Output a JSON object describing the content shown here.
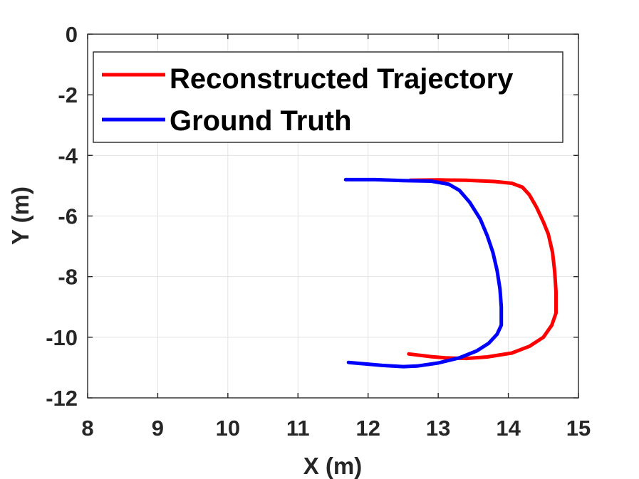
{
  "chart_data": {
    "type": "line",
    "xlabel": "X (m)",
    "ylabel": "Y (m)",
    "xlim": [
      8,
      15
    ],
    "ylim": [
      -12,
      0
    ],
    "xticks": [
      8,
      9,
      10,
      11,
      12,
      13,
      14,
      15
    ],
    "yticks": [
      0,
      -2,
      -4,
      -6,
      -8,
      -10,
      -12
    ],
    "grid": true,
    "legend_position": "top-left",
    "series": [
      {
        "name": "Reconstructed Trajectory",
        "color": "#ff0000",
        "points": [
          [
            12.6,
            -4.82
          ],
          [
            13.0,
            -4.81
          ],
          [
            13.4,
            -4.82
          ],
          [
            13.8,
            -4.86
          ],
          [
            14.05,
            -4.92
          ],
          [
            14.2,
            -5.05
          ],
          [
            14.3,
            -5.3
          ],
          [
            14.4,
            -5.7
          ],
          [
            14.5,
            -6.2
          ],
          [
            14.57,
            -6.6
          ],
          [
            14.63,
            -7.2
          ],
          [
            14.66,
            -7.8
          ],
          [
            14.68,
            -8.5
          ],
          [
            14.68,
            -9.2
          ],
          [
            14.62,
            -9.6
          ],
          [
            14.5,
            -10.0
          ],
          [
            14.3,
            -10.3
          ],
          [
            14.05,
            -10.52
          ],
          [
            13.7,
            -10.65
          ],
          [
            13.4,
            -10.7
          ],
          [
            13.1,
            -10.68
          ],
          [
            12.9,
            -10.64
          ],
          [
            12.58,
            -10.55
          ]
        ]
      },
      {
        "name": "Ground Truth",
        "color": "#0000ff",
        "points": [
          [
            11.68,
            -4.8
          ],
          [
            12.1,
            -4.8
          ],
          [
            12.5,
            -4.83
          ],
          [
            12.9,
            -4.85
          ],
          [
            13.15,
            -4.95
          ],
          [
            13.3,
            -5.15
          ],
          [
            13.45,
            -5.55
          ],
          [
            13.6,
            -6.1
          ],
          [
            13.7,
            -6.65
          ],
          [
            13.78,
            -7.2
          ],
          [
            13.84,
            -7.8
          ],
          [
            13.88,
            -8.4
          ],
          [
            13.9,
            -9.0
          ],
          [
            13.9,
            -9.6
          ],
          [
            13.84,
            -9.9
          ],
          [
            13.72,
            -10.2
          ],
          [
            13.55,
            -10.45
          ],
          [
            13.3,
            -10.68
          ],
          [
            13.0,
            -10.85
          ],
          [
            12.7,
            -10.95
          ],
          [
            12.5,
            -10.97
          ],
          [
            12.2,
            -10.93
          ],
          [
            11.72,
            -10.83
          ]
        ]
      }
    ]
  }
}
